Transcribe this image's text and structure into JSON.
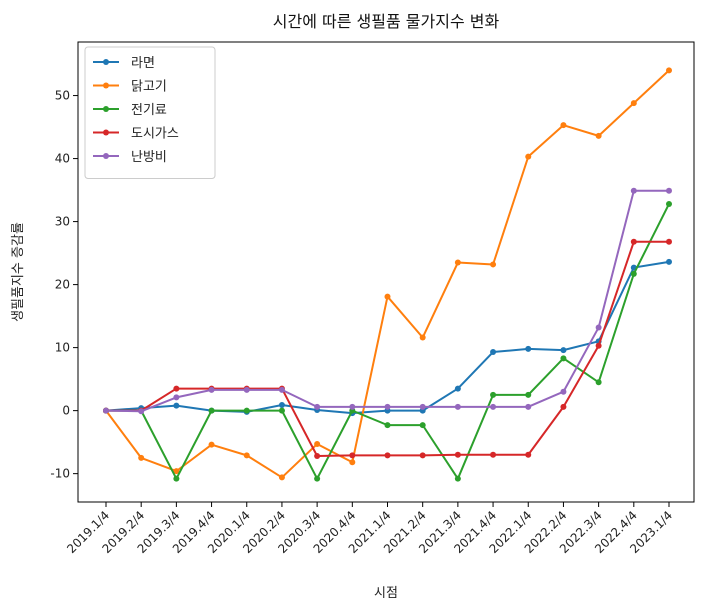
{
  "chart_data": {
    "type": "line",
    "title": "시간에 따른 생필품 물가지수 변화",
    "xlabel": "시점",
    "ylabel": "생필품지수 증감률",
    "categories": [
      "2019.1/4",
      "2019.2/4",
      "2019.3/4",
      "2019.4/4",
      "2020.1/4",
      "2020.2/4",
      "2020.3/4",
      "2020.4/4",
      "2021.1/4",
      "2021.2/4",
      "2021.3/4",
      "2021.4/4",
      "2022.1/4",
      "2022.2/4",
      "2022.3/4",
      "2022.4/4",
      "2023.1/4"
    ],
    "ylim": [
      -14.5,
      58.5
    ],
    "yticks": [
      -10,
      0,
      10,
      20,
      30,
      40,
      50
    ],
    "grid": false,
    "legend_position": "top-left",
    "series": [
      {
        "name": "라면",
        "color": "#1f77b4",
        "values": [
          0.0,
          0.4,
          0.8,
          0.0,
          -0.2,
          0.9,
          0.1,
          -0.4,
          0.0,
          0.0,
          3.5,
          9.3,
          9.8,
          9.6,
          11.0,
          22.7,
          23.6
        ]
      },
      {
        "name": "닭고기",
        "color": "#ff7f0e",
        "values": [
          0.0,
          -7.5,
          -9.6,
          -5.4,
          -7.1,
          -10.6,
          -5.3,
          -8.2,
          18.1,
          11.6,
          23.5,
          23.2,
          40.3,
          45.3,
          43.6,
          48.8,
          54.0
        ]
      },
      {
        "name": "전기료",
        "color": "#2ca02c",
        "values": [
          0.0,
          0.0,
          -10.8,
          0.0,
          0.0,
          0.0,
          -10.8,
          0.0,
          -2.3,
          -2.3,
          -10.8,
          2.5,
          2.5,
          8.3,
          4.5,
          21.7,
          32.8
        ]
      },
      {
        "name": "도시가스",
        "color": "#d62728",
        "values": [
          0.0,
          0.0,
          3.5,
          3.5,
          3.5,
          3.5,
          -7.2,
          -7.1,
          -7.1,
          -7.1,
          -7.0,
          -7.0,
          -7.0,
          0.6,
          10.3,
          26.8,
          26.8
        ]
      },
      {
        "name": "난방비",
        "color": "#9467bd",
        "values": [
          0.0,
          -0.1,
          2.1,
          3.3,
          3.3,
          3.3,
          0.6,
          0.6,
          0.6,
          0.6,
          0.6,
          0.6,
          0.6,
          3.0,
          13.2,
          34.9,
          34.9
        ]
      }
    ]
  }
}
